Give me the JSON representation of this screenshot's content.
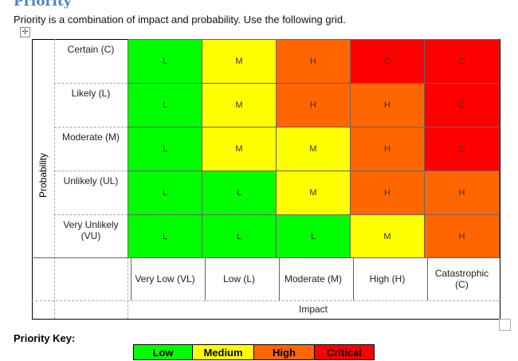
{
  "heading": "Priority",
  "intro": "Priority is a combination of impact and probability.  Use the following grid.",
  "probability_label": "Probability",
  "impact_label": "Impact",
  "rows": [
    {
      "label": "Certain (C)",
      "cells": [
        "L",
        "M",
        "H",
        "C",
        "C"
      ]
    },
    {
      "label": "Likely (L)",
      "cells": [
        "L",
        "M",
        "H",
        "H",
        "C"
      ]
    },
    {
      "label": "Moderate (M)",
      "cells": [
        "L",
        "M",
        "M",
        "H",
        "C"
      ]
    },
    {
      "label": "Unlikely (UL)",
      "cells": [
        "L",
        "L",
        "M",
        "H",
        "H"
      ]
    },
    {
      "label": "Very Unlikely (VU)",
      "cells": [
        "L",
        "L",
        "L",
        "M",
        "H"
      ]
    }
  ],
  "columns": [
    "Very Low (VL)",
    "Low (L)",
    "Moderate (M)",
    "High (H)",
    "Catastrophic (C)"
  ],
  "colors": {
    "L": "#00ff00",
    "M": "#ffff00",
    "H": "#ff6600",
    "C": "#ff0000"
  },
  "key_title": "Priority Key:",
  "key": [
    {
      "code": "L",
      "label": "Low"
    },
    {
      "code": "M",
      "label": "Medium"
    },
    {
      "code": "H",
      "label": "High"
    },
    {
      "code": "C",
      "label": "Critical"
    }
  ]
}
